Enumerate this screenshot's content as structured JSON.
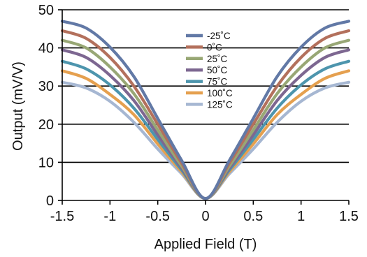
{
  "chart_data": {
    "type": "line",
    "title": "",
    "xlabel": "Applied Field (T)",
    "ylabel": "Output (mV/V)",
    "xlim": [
      -1.5,
      1.5
    ],
    "ylim": [
      0,
      50
    ],
    "xticks": [
      -1.5,
      -1,
      -0.5,
      0,
      0.5,
      1,
      1.5
    ],
    "yticks": [
      0,
      10,
      20,
      30,
      40,
      50
    ],
    "xtick_labels": [
      "-1.5",
      "-1",
      "-0.5",
      "0",
      "0.5",
      "1",
      "1.5"
    ],
    "ytick_labels": [
      "0",
      "10",
      "20",
      "30",
      "40",
      "50"
    ],
    "grid": "horizontal",
    "legend_position": "top-center",
    "x": [
      -1.5,
      -1.25,
      -1.0,
      -0.75,
      -0.5,
      -0.25,
      0,
      0.25,
      0.5,
      0.75,
      1.0,
      1.25,
      1.5
    ],
    "series": [
      {
        "name": "-25˚C",
        "color": "#6279a6",
        "values": [
          47.0,
          45.2,
          40.2,
          32.5,
          21.5,
          10.5,
          0.5,
          10.5,
          21.5,
          32.5,
          40.2,
          45.2,
          47.0
        ]
      },
      {
        "name": "0˚C",
        "color": "#b3705c",
        "values": [
          44.5,
          42.5,
          37.5,
          30.0,
          20.0,
          9.8,
          0.5,
          9.8,
          20.0,
          30.0,
          37.5,
          42.5,
          44.5
        ]
      },
      {
        "name": "25˚C",
        "color": "#98a775",
        "values": [
          42.0,
          40.0,
          35.0,
          28.0,
          18.5,
          9.0,
          0.5,
          9.0,
          18.5,
          28.0,
          35.0,
          40.0,
          42.0
        ]
      },
      {
        "name": "50˚C",
        "color": "#7d6791",
        "values": [
          39.5,
          37.5,
          32.8,
          26.2,
          17.2,
          8.5,
          0.5,
          8.5,
          17.2,
          26.2,
          32.8,
          37.5,
          39.5
        ]
      },
      {
        "name": "75˚C",
        "color": "#4d95ad",
        "values": [
          36.5,
          34.5,
          30.3,
          24.2,
          16.0,
          8.0,
          0.5,
          8.0,
          16.0,
          24.2,
          30.3,
          34.5,
          36.5
        ]
      },
      {
        "name": "100˚C",
        "color": "#e5a04f",
        "values": [
          34.0,
          32.0,
          27.8,
          22.5,
          14.8,
          7.5,
          0.5,
          7.5,
          14.8,
          22.5,
          27.8,
          32.0,
          34.0
        ]
      },
      {
        "name": "125˚C",
        "color": "#a6b7d2",
        "values": [
          31.0,
          29.5,
          26.0,
          20.5,
          13.5,
          7.0,
          0.5,
          7.0,
          13.5,
          20.5,
          26.0,
          29.5,
          31.0
        ]
      }
    ]
  }
}
